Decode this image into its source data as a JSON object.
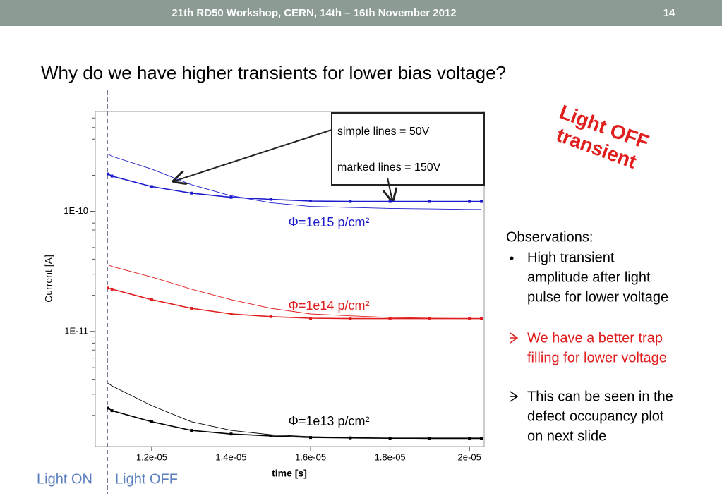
{
  "header": {
    "text": "21th  RD50 Workshop, CERN, 14th – 16th November 2012",
    "page": "14"
  },
  "title": "Why do we have higher transients for lower bias voltage?",
  "chart_data": {
    "type": "line",
    "xlabel": "time [s]",
    "ylabel": "Current [A]",
    "log_y": true,
    "xlim": [
      1.058e-05,
      2.037e-05
    ],
    "ylim": [
      1.1e-12,
      6.8e-10
    ],
    "xticks": [
      {
        "value": 1.2e-05,
        "label": "1.2e-05"
      },
      {
        "value": 1.4e-05,
        "label": "1.4e-05"
      },
      {
        "value": 1.6e-05,
        "label": "1.6e-05"
      },
      {
        "value": 1.8e-05,
        "label": "1.8e-05"
      },
      {
        "value": 2e-05,
        "label": "2e-05"
      }
    ],
    "yticks": [
      {
        "value": 1e-10,
        "label": "1E-10"
      },
      {
        "value": 1e-11,
        "label": "1E-11"
      }
    ],
    "x": [
      1.09e-05,
      1.1e-05,
      1.2e-05,
      1.3e-05,
      1.4e-05,
      1.5e-05,
      1.6e-05,
      1.7e-05,
      1.8e-05,
      1.9e-05,
      2e-05,
      2.03e-05
    ],
    "series": [
      {
        "color": "#1c1ccc",
        "markers": false,
        "values": [
          3e-10,
          2.88e-10,
          2.25e-10,
          1.67e-10,
          1.35e-10,
          1.18e-10,
          1.1e-10,
          1.08e-10,
          1.06e-10,
          1.05e-10,
          1.04e-10,
          1.04e-10
        ]
      },
      {
        "color": "#1c1ccc",
        "markers": true,
        "values": [
          2.05e-10,
          1.97e-10,
          1.61e-10,
          1.42e-10,
          1.31e-10,
          1.26e-10,
          1.22e-10,
          1.21e-10,
          1.21e-10,
          1.21e-10,
          1.21e-10,
          1.21e-10
        ]
      },
      {
        "color": "#e01e1e",
        "markers": false,
        "values": [
          3.6e-11,
          3.48e-11,
          2.84e-11,
          2.25e-11,
          1.84e-11,
          1.56e-11,
          1.4e-11,
          1.35e-11,
          1.31e-11,
          1.29e-11,
          1.28e-11,
          1.28e-11
        ]
      },
      {
        "color": "#e01e1e",
        "markers": true,
        "values": [
          2.3e-11,
          2.25e-11,
          1.84e-11,
          1.56e-11,
          1.4e-11,
          1.33e-11,
          1.29e-11,
          1.28e-11,
          1.28e-11,
          1.28e-11,
          1.28e-11,
          1.28e-11
        ]
      },
      {
        "color": "#000000",
        "markers": false,
        "values": [
          3.7e-12,
          3.52e-12,
          2.41e-12,
          1.77e-12,
          1.5e-12,
          1.38e-12,
          1.33e-12,
          1.31e-12,
          1.29e-12,
          1.28e-12,
          1.28e-12,
          1.28e-12
        ]
      },
      {
        "color": "#000000",
        "markers": true,
        "values": [
          2.3e-12,
          2.19e-12,
          1.77e-12,
          1.5e-12,
          1.4e-12,
          1.35e-12,
          1.31e-12,
          1.3e-12,
          1.29e-12,
          1.29e-12,
          1.29e-12,
          1.29e-12
        ]
      }
    ],
    "annotations": [
      {
        "text": "Φ=1e15 p/cm²",
        "color": "#1c1ccc"
      },
      {
        "text": "Φ=1e14 p/cm²",
        "color": "#e01e1e"
      },
      {
        "text": "Φ=1e13 p/cm²",
        "color": "#000000"
      }
    ],
    "legend_box": [
      "simple lines = 50V",
      "marked lines = 150V"
    ]
  },
  "stamp": [
    "Light OFF",
    "transient"
  ],
  "light_labels": [
    "Light ON",
    "Light OFF"
  ],
  "observations": {
    "heading": "Observations:",
    "items": [
      {
        "lines": [
          "High transient",
          "amplitude after light",
          "pulse for lower voltage"
        ]
      },
      {
        "lines": [
          "We have a better trap",
          "filling for lower voltage"
        ]
      },
      {
        "lines": [
          "This can be seen in the",
          "defect occupancy plot",
          "on next slide"
        ]
      }
    ]
  }
}
